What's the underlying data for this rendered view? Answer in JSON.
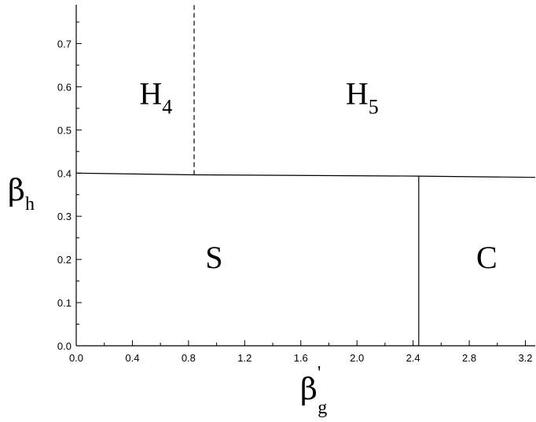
{
  "chart_data": {
    "type": "line",
    "title": "",
    "xlabel": {
      "symbol": "β",
      "prime": "'",
      "subscript": "g"
    },
    "ylabel": {
      "symbol": "β",
      "subscript": "h"
    },
    "xlim": [
      0.0,
      3.27
    ],
    "ylim": [
      0.0,
      0.79
    ],
    "x_ticks": [
      "0.0",
      "0.4",
      "0.8",
      "1.2",
      "1.6",
      "2.0",
      "2.4",
      "2.8",
      "3.2"
    ],
    "x_tick_values": [
      0.0,
      0.4,
      0.8,
      1.2,
      1.6,
      2.0,
      2.4,
      2.8,
      3.2
    ],
    "y_ticks": [
      "0.0",
      "0.1",
      "0.2",
      "0.3",
      "0.4",
      "0.5",
      "0.6",
      "0.7"
    ],
    "y_tick_values": [
      0.0,
      0.1,
      0.2,
      0.3,
      0.4,
      0.5,
      0.6,
      0.7
    ],
    "grid": false,
    "boundaries": [
      {
        "style": "solid",
        "x": [
          0.0,
          0.85,
          2.44,
          3.27
        ],
        "y": [
          0.4,
          0.396,
          0.393,
          0.39
        ]
      },
      {
        "style": "dashed",
        "x": [
          0.84,
          0.84
        ],
        "y": [
          0.396,
          0.79
        ]
      },
      {
        "style": "solid",
        "x": [
          2.44,
          2.44
        ],
        "y": [
          0.0,
          0.393
        ]
      }
    ],
    "regions": [
      {
        "label": "H",
        "subscript": "4",
        "x": 0.45,
        "y": 0.56
      },
      {
        "label": "H",
        "subscript": "5",
        "x": 1.92,
        "y": 0.56
      },
      {
        "label": "S",
        "subscript": "",
        "x": 0.92,
        "y": 0.18
      },
      {
        "label": "C",
        "subscript": "",
        "x": 2.85,
        "y": 0.18
      }
    ]
  }
}
